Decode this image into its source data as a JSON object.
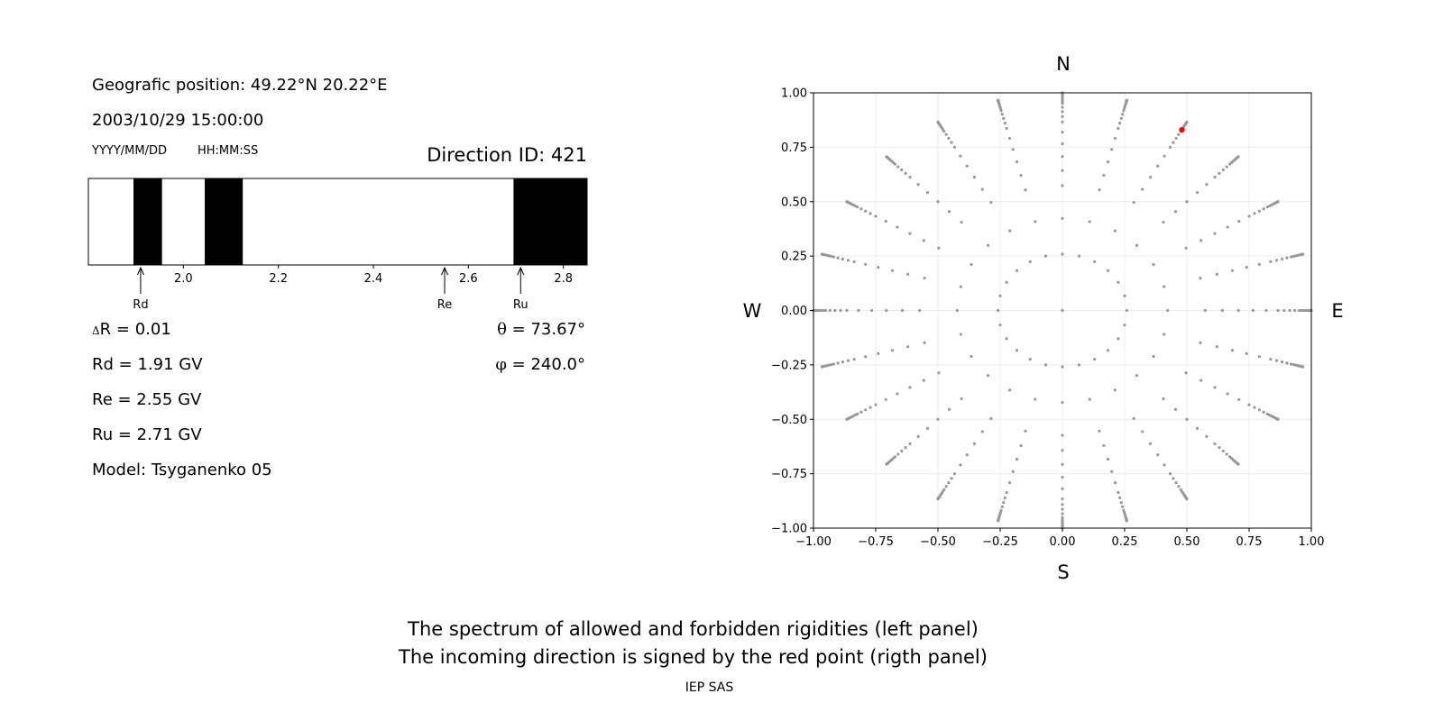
{
  "left_panel": {
    "position_label": "Geografic position: 49.22°N 20.22°E",
    "datetime": "2003/10/29 15:00:00",
    "date_format": "YYYY/MM/DD",
    "time_format": "HH:MM:SS",
    "direction_id": "Direction ID: 421",
    "delta_r": "R = 0.01",
    "delta_symbol": "Δ",
    "rd_text": "Rd = 1.91 GV",
    "re_text": "Re = 2.55 GV",
    "ru_text": "Ru = 2.71 GV",
    "model_text": "Model: Tsyganenko 05",
    "theta_symbol": "θ",
    "theta_text": " = 73.67°",
    "phi_symbol": "φ",
    "phi_text": " = 240.0°"
  },
  "chart_data": [
    {
      "type": "spectrum-bar",
      "xlim": [
        1.8,
        2.85
      ],
      "ticks": [
        2.0,
        2.2,
        2.4,
        2.6,
        2.8
      ],
      "tick_labels": [
        "2.0",
        "2.2",
        "2.4",
        "2.6",
        "2.8"
      ],
      "forbidden_bands": [
        [
          1.895,
          1.955
        ],
        [
          2.045,
          2.125
        ],
        [
          2.695,
          2.85
        ]
      ],
      "markers": [
        {
          "label": "Rd",
          "value": 1.91
        },
        {
          "label": "Re",
          "value": 2.55
        },
        {
          "label": "Ru",
          "value": 2.71
        }
      ],
      "colors": {
        "forbidden": "#000000",
        "allowed": "#ffffff"
      }
    },
    {
      "type": "scatter",
      "xlim": [
        -1.0,
        1.0
      ],
      "ylim": [
        -1.0,
        1.0
      ],
      "ticks": [
        -1.0,
        -0.75,
        -0.5,
        -0.25,
        0.0,
        0.25,
        0.5,
        0.75,
        1.0
      ],
      "x_tick_labels": [
        "−1.00",
        "−0.75",
        "−0.50",
        "−0.25",
        "0.00",
        "0.25",
        "0.50",
        "0.75",
        "1.00"
      ],
      "y_tick_labels": [
        "−1.00",
        "−0.75",
        "−0.50",
        "−0.25",
        "0.00",
        "0.25",
        "0.50",
        "0.75",
        "1.00"
      ],
      "grid": true,
      "direction_labels": {
        "north": "N",
        "south": "S",
        "west": "W",
        "east": "E"
      },
      "grid_points": {
        "color": "#999999",
        "description": "rays of 24 azimuths (every 15°) with points at zenith angles from 0° to 90°",
        "azimuth_step_deg": 15,
        "zenith_angles_deg": [
          0,
          15,
          25,
          35,
          40,
          45,
          50,
          55,
          60,
          63,
          66,
          69,
          72,
          74,
          76,
          78,
          80,
          82,
          84,
          86,
          88,
          90
        ]
      },
      "highlight_point": {
        "x": 0.48,
        "y": 0.83,
        "color": "#ff0000"
      }
    }
  ],
  "footer": {
    "caption_line1": "The spectrum of allowed and forbidden rigidities (left panel)",
    "caption_line2": "The incoming direction is signed by the red point (rigth panel)",
    "credit": "IEP SAS"
  }
}
